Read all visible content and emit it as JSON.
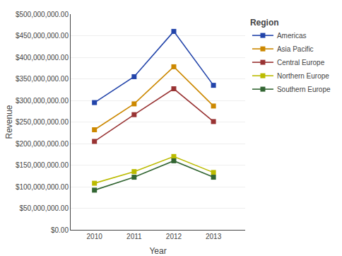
{
  "chart_data": {
    "type": "line",
    "xlabel": "Year",
    "ylabel": "Revenue",
    "x": [
      2010,
      2011,
      2012,
      2013
    ],
    "series": [
      {
        "name": "Americas",
        "color": "#2244AA",
        "marker": "square",
        "line_style": "solid",
        "values": [
          295000000,
          355000000,
          460000000,
          335000000
        ]
      },
      {
        "name": "Asia Pacific",
        "color": "#CC8800",
        "marker": "square",
        "line_style": "solid",
        "values": [
          232000000,
          292000000,
          378000000,
          287000000
        ]
      },
      {
        "name": "Central Europe",
        "color": "#993333",
        "marker": "square",
        "line_style": "solid",
        "values": [
          205000000,
          267000000,
          327000000,
          251000000
        ]
      },
      {
        "name": "Northern Europe",
        "color": "#BBBB00",
        "marker": "square",
        "line_style": "solid",
        "values": [
          108000000,
          135000000,
          170000000,
          133000000
        ]
      },
      {
        "name": "Southern Europe",
        "color": "#336633",
        "marker": "square",
        "line_style": "solid",
        "values": [
          92000000,
          122000000,
          160000000,
          122000000
        ]
      }
    ],
    "xlim": [
      2009.4,
      2013.8
    ],
    "xticks": [
      2010,
      2011,
      2012,
      2013
    ],
    "ylim": [
      0,
      500000000
    ],
    "yticks": [
      {
        "value": 0,
        "label": "$0.00"
      },
      {
        "value": 50000000,
        "label": "$50,000,000.00"
      },
      {
        "value": 100000000,
        "label": "$100,000,000.00"
      },
      {
        "value": 150000000,
        "label": "$150,000,000.00"
      },
      {
        "value": 200000000,
        "label": "$200,000,000.00"
      },
      {
        "value": 250000000,
        "label": "$250,000,000.00"
      },
      {
        "value": 300000000,
        "label": "$300,000,000.00"
      },
      {
        "value": 350000000,
        "label": "$350,000,000.00"
      },
      {
        "value": 400000000,
        "label": "$400,000,000.00"
      },
      {
        "value": 450000000,
        "label": "$450,000,000.00"
      },
      {
        "value": 500000000,
        "label": "$500,000,000.00"
      }
    ],
    "grid": true,
    "legend": "upper right",
    "legend_title": "Region"
  }
}
